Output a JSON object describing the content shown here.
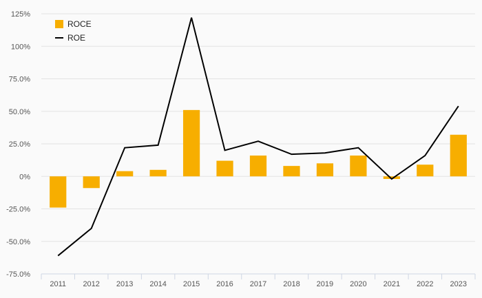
{
  "chart_data": {
    "type": "bar+line",
    "title": "",
    "xlabel": "",
    "ylabel": "",
    "categories": [
      "2011",
      "2012",
      "2013",
      "2014",
      "2015",
      "2016",
      "2017",
      "2018",
      "2019",
      "2020",
      "2021",
      "2022",
      "2023"
    ],
    "y_ticks": [
      125,
      100,
      75,
      50,
      25,
      0,
      -25,
      -50,
      -75
    ],
    "y_tick_labels": [
      "125%",
      "100%",
      "75.0%",
      "50.0%",
      "25.0%",
      "0%",
      "-25.0%",
      "-50.0%",
      "-75.0%"
    ],
    "ylim": [
      -75,
      125
    ],
    "grid": true,
    "legend_position": "top-left",
    "series": [
      {
        "name": "ROCE",
        "kind": "bar",
        "color": "#f7ae00",
        "values": [
          -24,
          -9,
          4,
          5,
          51,
          12,
          16,
          8,
          10,
          16,
          -2,
          9,
          32
        ]
      },
      {
        "name": "ROE",
        "kind": "line",
        "color": "#000000",
        "values": [
          -61,
          -40,
          22,
          24,
          122,
          20,
          27,
          17,
          18,
          22,
          -2,
          16,
          54
        ]
      }
    ]
  }
}
